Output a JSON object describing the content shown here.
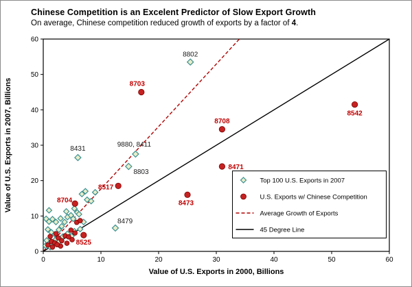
{
  "header": {
    "title": "Chinese Competition is an Excelent Predictor of Slow Export Growth",
    "subtitle_prefix": "On average, Chinese competition reduced growth of exports by a factor of ",
    "subtitle_emph": "4",
    "subtitle_suffix": "."
  },
  "chart_data": {
    "type": "scatter",
    "title": "Chinese Competition is an Excelent Predictor of Slow Export Growth",
    "xlabel": "Value of U.S. Exports in 2000, Billions",
    "ylabel": "Value of U.S. Exports in 2007, Billions",
    "xlim": [
      0,
      60
    ],
    "ylim": [
      0,
      60
    ],
    "xticks": [
      0,
      10,
      20,
      30,
      40,
      50,
      60
    ],
    "yticks": [
      0,
      10,
      20,
      30,
      40,
      50,
      60
    ],
    "grid": false,
    "legend_position": "lower-right-inside",
    "series": [
      {
        "name": "Top 100 U.S. Exports in 2007",
        "id": "top100-series",
        "marker": "diamond",
        "color": "#3a9090",
        "fill": "#e9edc9",
        "label_color": "black",
        "points": [
          [
            0.5,
            9.2
          ],
          [
            1,
            8.4
          ],
          [
            1.6,
            9.1
          ],
          [
            2.2,
            8.3
          ],
          [
            0.8,
            6.2
          ],
          [
            1.4,
            5.4
          ],
          [
            2,
            4.8
          ],
          [
            2.7,
            6.1
          ],
          [
            3.2,
            7.1
          ],
          [
            3,
            9.3
          ],
          [
            3.7,
            8.3
          ],
          [
            4.2,
            9.7
          ],
          [
            4,
            11.3
          ],
          [
            4.8,
            10.2
          ],
          [
            5.4,
            12.1
          ],
          [
            5.9,
            11
          ],
          [
            5.2,
            9.2
          ],
          [
            6.2,
            10.5
          ],
          [
            2.2,
            3.4
          ],
          [
            2.8,
            2.9
          ],
          [
            3.4,
            4.2
          ],
          [
            4.2,
            5
          ],
          [
            4.9,
            4.3
          ],
          [
            5.4,
            5.7
          ],
          [
            6.4,
            6.3
          ],
          [
            7,
            8.3
          ],
          [
            7.6,
            14.6
          ],
          [
            6.7,
            16.2
          ],
          [
            7.3,
            17
          ],
          [
            8.3,
            14.2
          ],
          [
            9,
            16.7
          ],
          [
            1,
            11.6
          ],
          [
            0.6,
            3.1
          ],
          [
            1.8,
            2.3
          ],
          [
            0.4,
            1.6
          ],
          [
            1.2,
            1.2
          ]
        ],
        "labeled_points": [
          {
            "label": "8802",
            "x": 25.5,
            "y": 53.5,
            "dx": 0,
            "dy": -8,
            "anchor": "middle"
          },
          {
            "label": "8431",
            "x": 6,
            "y": 26.5,
            "dx": 0,
            "dy": -10,
            "anchor": "middle"
          },
          {
            "label": "9880, 8411",
            "x": 16,
            "y": 27.5,
            "dx": -2,
            "dy": -11,
            "anchor": "middle"
          },
          {
            "label": "8803",
            "x": 14.8,
            "y": 24,
            "dx": 7,
            "dy": 11,
            "anchor": "start"
          },
          {
            "label": "8479",
            "x": 12.5,
            "y": 6.6,
            "dx": 3,
            "dy": -7,
            "anchor": "start"
          }
        ]
      },
      {
        "name": "U.S. Exports w/ Chinese Competition",
        "id": "competition-series",
        "marker": "circle",
        "color": "#7a0000",
        "fill": "#c62222",
        "label_color": "red",
        "points": [
          [
            0.8,
            1.8
          ],
          [
            1.4,
            2.8
          ],
          [
            2,
            2.4
          ],
          [
            2.6,
            3.8
          ],
          [
            3.2,
            3
          ],
          [
            3.8,
            4.4
          ],
          [
            4.4,
            4.1
          ],
          [
            2.2,
            5
          ],
          [
            1.2,
            4.2
          ],
          [
            4.8,
            6
          ],
          [
            5.5,
            5.2
          ],
          [
            5.8,
            8.2
          ],
          [
            6.4,
            8.7
          ],
          [
            1.6,
            1.2
          ],
          [
            3,
            1.5
          ],
          [
            4.1,
            2.3
          ],
          [
            5,
            3.3
          ],
          [
            2.4,
            1.9
          ]
        ],
        "labeled_points": [
          {
            "label": "8703",
            "x": 17,
            "y": 45,
            "dx": -6,
            "dy": -9,
            "anchor": "middle"
          },
          {
            "label": "8708",
            "x": 31,
            "y": 34.5,
            "dx": 0,
            "dy": -9,
            "anchor": "middle"
          },
          {
            "label": "8542",
            "x": 54,
            "y": 41.5,
            "dx": 0,
            "dy": 16,
            "anchor": "middle"
          },
          {
            "label": "8471",
            "x": 31,
            "y": 24,
            "dx": 9,
            "dy": 4,
            "anchor": "start"
          },
          {
            "label": "8473",
            "x": 25,
            "y": 16,
            "dx": -2,
            "dy": 15,
            "anchor": "middle"
          },
          {
            "label": "8517",
            "x": 13,
            "y": 18.5,
            "dx": -7,
            "dy": 5,
            "anchor": "end"
          },
          {
            "label": "8704",
            "x": 5.5,
            "y": 13.5,
            "dx": -4,
            "dy": -2,
            "anchor": "end"
          },
          {
            "label": "8525",
            "x": 7,
            "y": 4.6,
            "dx": 0,
            "dy": 14,
            "anchor": "middle"
          }
        ]
      }
    ],
    "lines": [
      {
        "name": "Average Growth of Exports",
        "id": "average-growth-line",
        "style": "dashed",
        "color": "#b00000",
        "from": [
          0,
          0
        ],
        "to": [
          34,
          60
        ]
      },
      {
        "name": "45 Degree Line",
        "id": "forty-five-degree-line",
        "style": "solid",
        "color": "#000000",
        "from": [
          0,
          0
        ],
        "to": [
          60,
          60
        ]
      }
    ]
  }
}
